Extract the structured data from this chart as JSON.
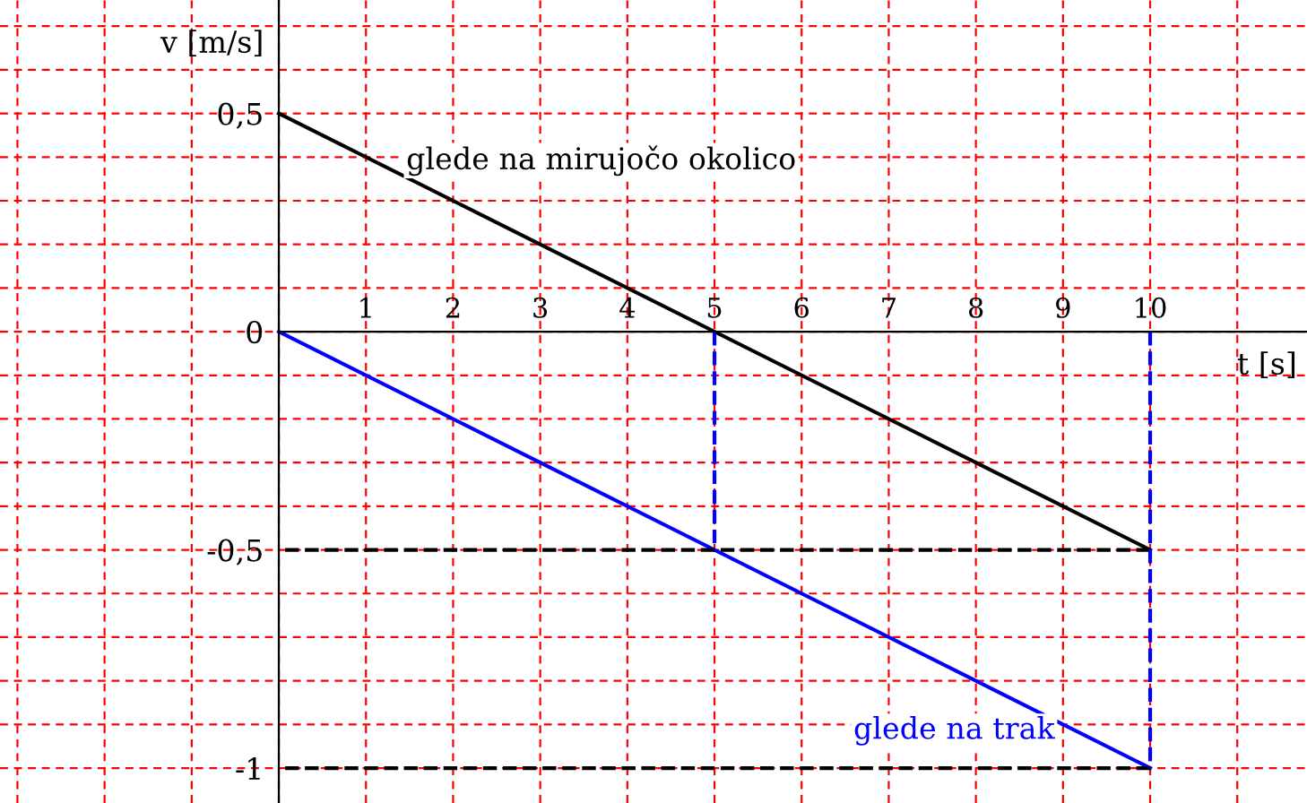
{
  "chart_data": {
    "type": "line",
    "xlabel": "t [s]",
    "ylabel": "v [m/s]",
    "xlim": [
      -3.2,
      11.8
    ],
    "ylim": [
      -1.08,
      0.76
    ],
    "xticks": [
      {
        "value": -3,
        "label": null
      },
      {
        "value": -2,
        "label": null
      },
      {
        "value": -1,
        "label": null
      },
      {
        "value": 0,
        "label": null
      },
      1,
      2,
      3,
      4,
      5,
      6,
      7,
      8,
      9,
      10,
      {
        "value": 11,
        "label": null
      }
    ],
    "yticks": [
      {
        "value": -1,
        "label": "-1"
      },
      {
        "value": -0.9,
        "label": null
      },
      {
        "value": -0.8,
        "label": null
      },
      {
        "value": -0.7,
        "label": null
      },
      {
        "value": -0.6,
        "label": null
      },
      {
        "value": -0.5,
        "label": "-0,5"
      },
      {
        "value": -0.4,
        "label": null
      },
      {
        "value": -0.3,
        "label": null
      },
      {
        "value": -0.2,
        "label": null
      },
      {
        "value": -0.1,
        "label": null
      },
      {
        "value": 0,
        "label": "0"
      },
      {
        "value": 0.1,
        "label": null
      },
      {
        "value": 0.2,
        "label": null
      },
      {
        "value": 0.3,
        "label": null
      },
      {
        "value": 0.4,
        "label": null
      },
      {
        "value": 0.5,
        "label": "0,5"
      },
      {
        "value": 0.6,
        "label": null
      },
      {
        "value": 0.7,
        "label": null
      }
    ],
    "grid": true,
    "series": [
      {
        "color": "#000000",
        "x": [
          0,
          10
        ],
        "values": [
          0.5,
          -0.5
        ]
      },
      {
        "color": "#0000ff",
        "x": [
          0,
          10
        ],
        "values": [
          0,
          -1
        ]
      },
      {
        "color": "#0000ff",
        "x": [
          5,
          5
        ],
        "values": [
          0,
          -0.5
        ],
        "line_style": "dashed"
      },
      {
        "color": "#000000",
        "x": [
          10,
          0
        ],
        "values": [
          -0.5,
          -0.5
        ],
        "line_style": "dashed"
      },
      {
        "color": "#0000ff",
        "x": [
          10,
          10
        ],
        "values": [
          0,
          -1
        ],
        "line_style": "dashed"
      },
      {
        "color": "#000000",
        "x": [
          10,
          0
        ],
        "values": [
          -1,
          -1
        ],
        "line_style": "dashed"
      }
    ],
    "annotations": [
      "glede na mirujočo okolico",
      "glede na trak"
    ]
  }
}
